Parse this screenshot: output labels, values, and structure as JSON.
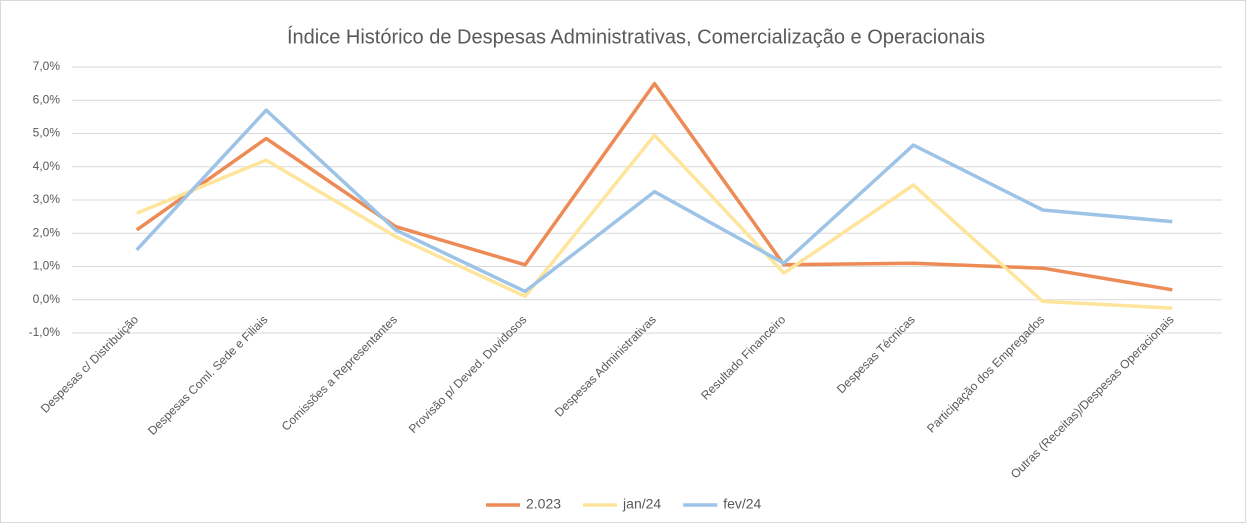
{
  "chart_data": {
    "type": "line",
    "title": "Índice Histórico de Despesas Administrativas, Comercialização e Operacionais",
    "categories": [
      "Despesas c/ Distribuição",
      "Despesas Coml. Sede e Filiais",
      "Comissões a Representantes",
      "Provisão p/ Deved. Duvidosos",
      "Despesas  Administrativas",
      "Resultado Financeiro",
      "Despesas  Técnicas",
      "Participação dos Empregados",
      "Outras (Receitas)/Despesas Operacionais"
    ],
    "series": [
      {
        "name": "2.023",
        "color": "#ed8b56",
        "values": [
          2.1,
          4.85,
          2.2,
          1.05,
          6.5,
          1.05,
          1.1,
          0.95,
          0.3
        ]
      },
      {
        "name": "jan/24",
        "color": "#fee59b",
        "values": [
          2.6,
          4.2,
          1.9,
          0.1,
          4.95,
          0.8,
          3.45,
          -0.05,
          -0.25
        ]
      },
      {
        "name": "fev/24",
        "color": "#9dc3e6",
        "values": [
          1.5,
          5.7,
          2.1,
          0.25,
          3.25,
          1.1,
          4.65,
          2.7,
          2.35
        ]
      }
    ],
    "ylim": [
      -1,
      7
    ],
    "yticks": [
      {
        "value": -1,
        "label": "-1,0%"
      },
      {
        "value": 0,
        "label": "0,0%"
      },
      {
        "value": 1,
        "label": "1,0%"
      },
      {
        "value": 2,
        "label": "2,0%"
      },
      {
        "value": 3,
        "label": "3,0%"
      },
      {
        "value": 4,
        "label": "4,0%"
      },
      {
        "value": 5,
        "label": "5,0%"
      },
      {
        "value": 6,
        "label": "6,0%"
      },
      {
        "value": 7,
        "label": "7,0%"
      }
    ],
    "grid": true,
    "legend": "bottom"
  }
}
